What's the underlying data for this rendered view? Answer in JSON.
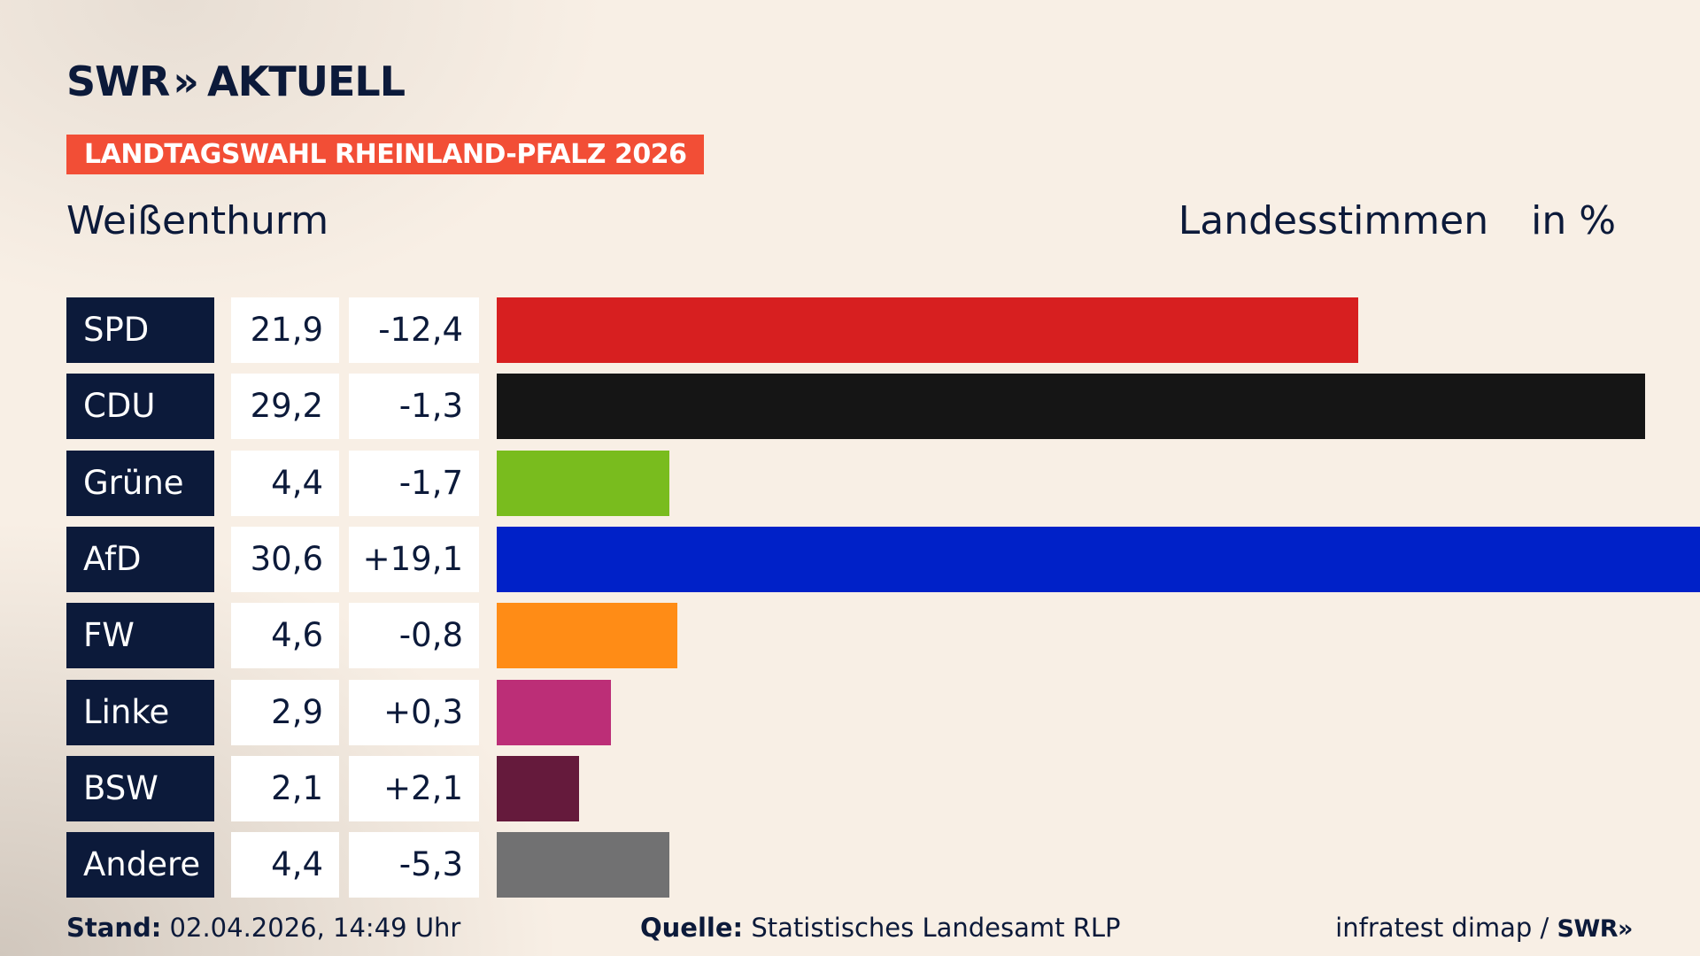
{
  "brand": {
    "logo_left": "SWR",
    "logo_chevrons": "»",
    "logo_right": "AKTUELL"
  },
  "tag": "LANDTAGSWAHL RHEINLAND-PFALZ 2026",
  "subtitle": "Weißenthurm",
  "measure": {
    "label": "Landesstimmen",
    "unit": "in %"
  },
  "chart_data": {
    "type": "bar",
    "orientation": "horizontal",
    "title": "LANDTAGSWAHL RHEINLAND-PFALZ 2026",
    "subtitle": "Weißenthurm",
    "xlabel": "",
    "ylabel": "",
    "categories": [
      "SPD",
      "CDU",
      "Grüne",
      "AfD",
      "FW",
      "Linke",
      "BSW",
      "Andere"
    ],
    "values": [
      21.9,
      29.2,
      4.4,
      30.6,
      4.6,
      2.9,
      2.1,
      4.4
    ],
    "value_labels": [
      "21,9",
      "29,2",
      "4,4",
      "30,6",
      "4,6",
      "2,9",
      "2,1",
      "4,4"
    ],
    "diff_labels": [
      "-12,4",
      "-1,3",
      "-1,7",
      "+19,1",
      "-0,8",
      "+0,3",
      "+2,1",
      "-5,3"
    ],
    "colors": [
      "#d71f20",
      "#151515",
      "#79bc1e",
      "#0021c8",
      "#ff8c16",
      "#bc2e77",
      "#651a3c",
      "#717172"
    ],
    "xlim": [
      0,
      30.6
    ],
    "grid": false,
    "legend": "none"
  },
  "footer": {
    "stand_label": "Stand:",
    "stand_value": "02.04.2026, 14:49 Uhr",
    "source_label": "Quelle:",
    "source_value": "Statistisches Landesamt RLP",
    "credit": "infratest dimap /",
    "credit_logo": "SWR»"
  }
}
